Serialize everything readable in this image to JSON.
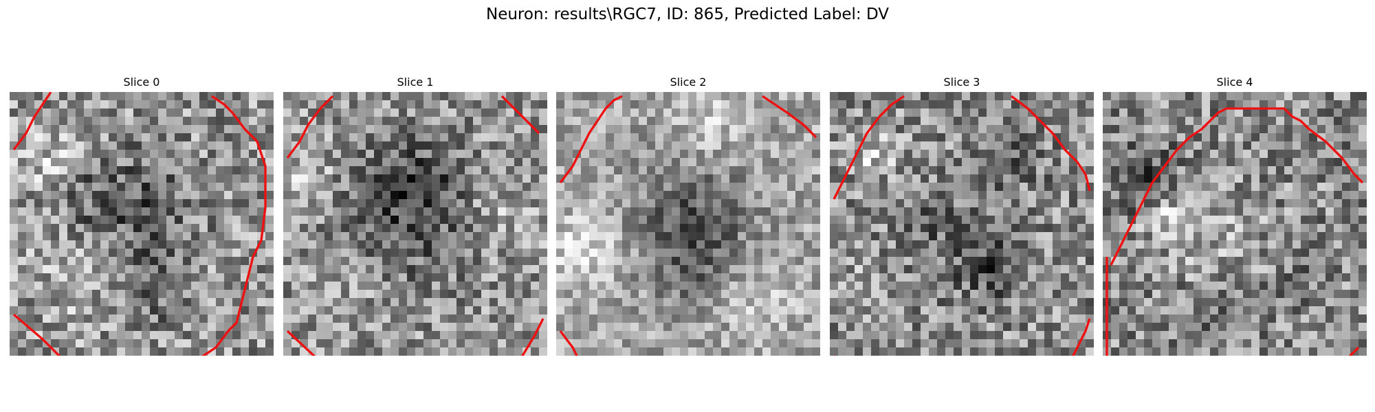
{
  "figure": {
    "title": "Neuron: results\\RGC7, ID: 865, Predicted Label: DV",
    "contour_color": "#ee1111"
  },
  "panels": [
    {
      "title": "Slice 0"
    },
    {
      "title": "Slice 1"
    },
    {
      "title": "Slice 2"
    },
    {
      "title": "Slice 3"
    },
    {
      "title": "Slice 4"
    }
  ]
}
